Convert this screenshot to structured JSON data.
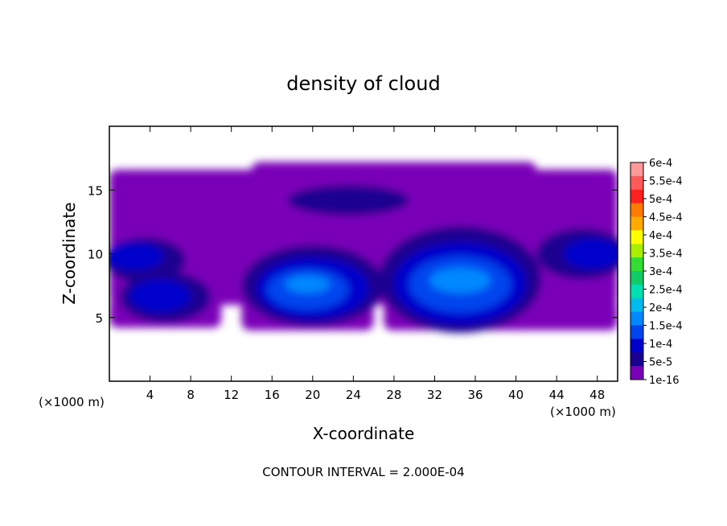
{
  "chart_data": {
    "type": "heatmap",
    "title": "density of cloud",
    "xlabel": "X-coordinate",
    "ylabel": "Z-coordinate",
    "x_unit": "(×1000 m)",
    "footer": "CONTOUR INTERVAL = 2.000E-04",
    "xlim": [
      0,
      50
    ],
    "ylim": [
      0,
      20
    ],
    "x_ticks": [
      4,
      8,
      12,
      16,
      20,
      24,
      28,
      32,
      36,
      40,
      44,
      48
    ],
    "y_ticks": [
      5,
      10,
      15
    ],
    "grid": false,
    "colorbar": {
      "position": "right",
      "labels": [
        "6e-4",
        "5.5e-4",
        "5e-4",
        "4.5e-4",
        "4e-4",
        "3.5e-4",
        "3e-4",
        "2.5e-4",
        "2e-4",
        "1.5e-4",
        "1e-4",
        "5e-5",
        "1e-16"
      ],
      "colors": [
        "#ff9999",
        "#ff5a5a",
        "#ff2020",
        "#ff7a00",
        "#ffaa00",
        "#ffff00",
        "#aaee00",
        "#33dd33",
        "#11cc66",
        "#00e0b0",
        "#00bbee",
        "#0088ff",
        "#0044ee",
        "#0000cc",
        "#1a0090",
        "#7a00b8"
      ]
    },
    "cloud_layers": [
      {
        "level": "1e-16",
        "shapes": [
          {
            "x0": 0,
            "x1": 50,
            "z0": 6.0,
            "z1": 16.6
          },
          {
            "x0": 0,
            "x1": 11,
            "z0": 4.2,
            "z1": 6.5
          },
          {
            "x0": 13,
            "x1": 26,
            "z0": 4.0,
            "z1": 6.5
          },
          {
            "x0": 27,
            "x1": 50,
            "z0": 4.0,
            "z1": 6.5
          },
          {
            "x0": 14,
            "x1": 42,
            "z0": 16.0,
            "z1": 17.2
          }
        ]
      },
      {
        "level": "5e-5",
        "shapes": [
          {
            "cx": 3.5,
            "cz": 9.5,
            "rx": 4.0,
            "rz": 1.8
          },
          {
            "cx": 5.5,
            "cz": 6.6,
            "rx": 4.5,
            "rz": 2.0
          },
          {
            "cx": 20.0,
            "cz": 7.5,
            "rx": 7.0,
            "rz": 3.2
          },
          {
            "cx": 34.5,
            "cz": 8.0,
            "rx": 8.0,
            "rz": 4.2
          },
          {
            "cx": 46.5,
            "cz": 10.0,
            "rx": 4.5,
            "rz": 2.0
          },
          {
            "cx": 23.5,
            "cz": 14.2,
            "rx": 6.0,
            "rz": 1.2
          }
        ]
      },
      {
        "level": "1e-4",
        "shapes": [
          {
            "cx": 2.5,
            "cz": 9.8,
            "rx": 2.8,
            "rz": 1.1
          },
          {
            "cx": 5.0,
            "cz": 6.7,
            "rx": 3.0,
            "rz": 1.3
          },
          {
            "cx": 20.0,
            "cz": 7.3,
            "rx": 5.5,
            "rz": 2.4
          },
          {
            "cx": 34.5,
            "cz": 7.7,
            "rx": 6.5,
            "rz": 3.2
          },
          {
            "cx": 47.5,
            "cz": 10.0,
            "rx": 2.8,
            "rz": 1.2
          }
        ]
      },
      {
        "level": "1.5e-4",
        "shapes": [
          {
            "cx": 19.5,
            "cz": 7.2,
            "rx": 4.0,
            "rz": 1.6
          },
          {
            "cx": 34.5,
            "cz": 7.6,
            "rx": 5.0,
            "rz": 2.2
          }
        ]
      },
      {
        "level": "2e-4",
        "shapes": [
          {
            "cx": 34.5,
            "cz": 7.9,
            "rx": 3.0,
            "rz": 1.0
          },
          {
            "cx": 19.5,
            "cz": 7.6,
            "rx": 2.2,
            "rz": 0.7
          }
        ]
      }
    ]
  }
}
